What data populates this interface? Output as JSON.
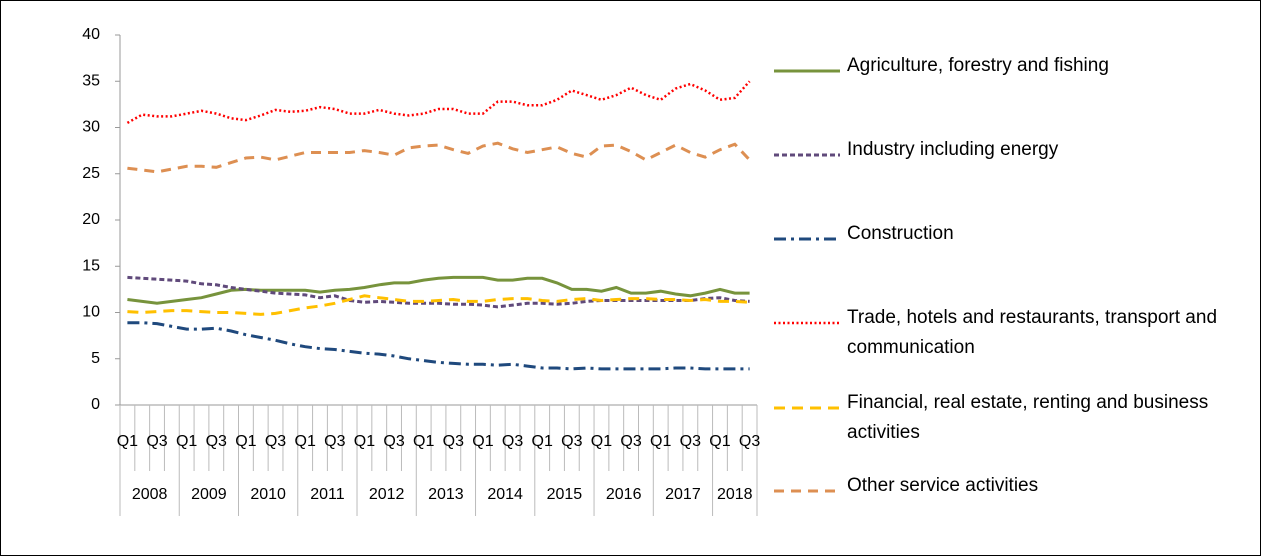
{
  "chart_data": {
    "type": "line",
    "categories": [
      "Q1",
      null,
      "Q3",
      null,
      "Q1",
      null,
      "Q3",
      null,
      "Q1",
      null,
      "Q3",
      null,
      "Q1",
      null,
      "Q3",
      null,
      "Q1",
      null,
      "Q3",
      null,
      "Q1",
      null,
      "Q3",
      null,
      "Q1",
      null,
      "Q3",
      null,
      "Q1",
      null,
      "Q3",
      null,
      "Q1",
      null,
      "Q3",
      null,
      "Q1",
      null,
      "Q3",
      null,
      "Q1",
      null,
      "Q3"
    ],
    "years": [
      "2008",
      "2009",
      "2010",
      "2011",
      "2012",
      "2013",
      "2014",
      "2015",
      "2016",
      "2017",
      "2018"
    ],
    "ylim": [
      0,
      40
    ],
    "yticks": [
      0,
      5,
      10,
      15,
      20,
      25,
      30,
      35,
      40
    ],
    "grid": false,
    "series": [
      {
        "name": "Agriculture, forestry and fishing",
        "color": "#77933c",
        "values": [
          11.4,
          11.2,
          11.0,
          11.2,
          11.4,
          11.6,
          12.0,
          12.4,
          12.5,
          12.4,
          12.4,
          12.4,
          12.4,
          12.2,
          12.4,
          12.5,
          12.7,
          13.0,
          13.2,
          13.2,
          13.5,
          13.7,
          13.8,
          13.8,
          13.8,
          13.5,
          13.5,
          13.7,
          13.7,
          13.2,
          12.5,
          12.5,
          12.3,
          12.7,
          12.1,
          12.1,
          12.3,
          12.0,
          11.8,
          12.1,
          12.5,
          12.1,
          12.1
        ]
      },
      {
        "name": "Industry including energy",
        "color": "#604a7b",
        "values": [
          13.8,
          13.7,
          13.6,
          13.5,
          13.4,
          13.1,
          13.0,
          12.7,
          12.5,
          12.3,
          12.1,
          12.0,
          11.9,
          11.6,
          11.8,
          11.3,
          11.1,
          11.2,
          11.1,
          11.0,
          11.0,
          11.0,
          10.9,
          10.9,
          10.8,
          10.6,
          10.8,
          11.0,
          11.0,
          10.9,
          11.0,
          11.2,
          11.3,
          11.3,
          11.3,
          11.3,
          11.3,
          11.3,
          11.3,
          11.5,
          11.6,
          11.3,
          11.2
        ]
      },
      {
        "name": "Construction",
        "color": "#1f497d",
        "values": [
          8.9,
          8.9,
          8.8,
          8.5,
          8.2,
          8.2,
          8.3,
          8.0,
          7.6,
          7.3,
          7.0,
          6.6,
          6.3,
          6.1,
          6.0,
          5.8,
          5.6,
          5.5,
          5.3,
          5.0,
          4.8,
          4.6,
          4.5,
          4.4,
          4.4,
          4.3,
          4.4,
          4.2,
          4.0,
          4.0,
          3.9,
          4.0,
          3.9,
          3.9,
          3.9,
          3.9,
          3.9,
          4.0,
          4.0,
          3.9,
          3.9,
          3.9,
          3.9
        ]
      },
      {
        "name": "Trade, hotels and restaurants, transport and communication",
        "color": "#ff0000",
        "values": [
          30.5,
          31.4,
          31.2,
          31.2,
          31.5,
          31.8,
          31.5,
          31.0,
          30.8,
          31.3,
          31.9,
          31.7,
          31.8,
          32.2,
          32.0,
          31.5,
          31.5,
          31.9,
          31.5,
          31.3,
          31.5,
          32.0,
          32.0,
          31.5,
          31.5,
          32.8,
          32.8,
          32.4,
          32.4,
          33.0,
          34.0,
          33.5,
          33.0,
          33.5,
          34.3,
          33.5,
          33.0,
          34.2,
          34.7,
          34.0,
          33.0,
          33.2,
          35.0
        ]
      },
      {
        "name": "Financial, real estate, renting and business activities",
        "color": "#ffc000",
        "values": [
          10.1,
          10.0,
          10.1,
          10.2,
          10.2,
          10.1,
          10.0,
          10.0,
          9.9,
          9.8,
          9.9,
          10.2,
          10.5,
          10.7,
          11.0,
          11.4,
          11.8,
          11.6,
          11.4,
          11.2,
          11.2,
          11.3,
          11.4,
          11.2,
          11.2,
          11.4,
          11.5,
          11.5,
          11.3,
          11.2,
          11.4,
          11.5,
          11.3,
          11.4,
          11.5,
          11.5,
          11.4,
          11.4,
          11.3,
          11.4,
          11.2,
          11.2,
          11.1
        ]
      },
      {
        "name": "Other service activities",
        "color": "#dd8f52",
        "values": [
          25.6,
          25.4,
          25.2,
          25.5,
          25.8,
          25.8,
          25.7,
          26.2,
          26.7,
          26.8,
          26.5,
          26.9,
          27.3,
          27.3,
          27.3,
          27.3,
          27.5,
          27.3,
          27.0,
          27.8,
          28.0,
          28.1,
          27.6,
          27.2,
          28.0,
          28.3,
          27.7,
          27.3,
          27.6,
          27.9,
          27.2,
          26.8,
          28.0,
          28.1,
          27.4,
          26.5,
          27.3,
          28.1,
          27.3,
          26.8,
          27.6,
          28.2,
          26.5
        ]
      }
    ]
  }
}
